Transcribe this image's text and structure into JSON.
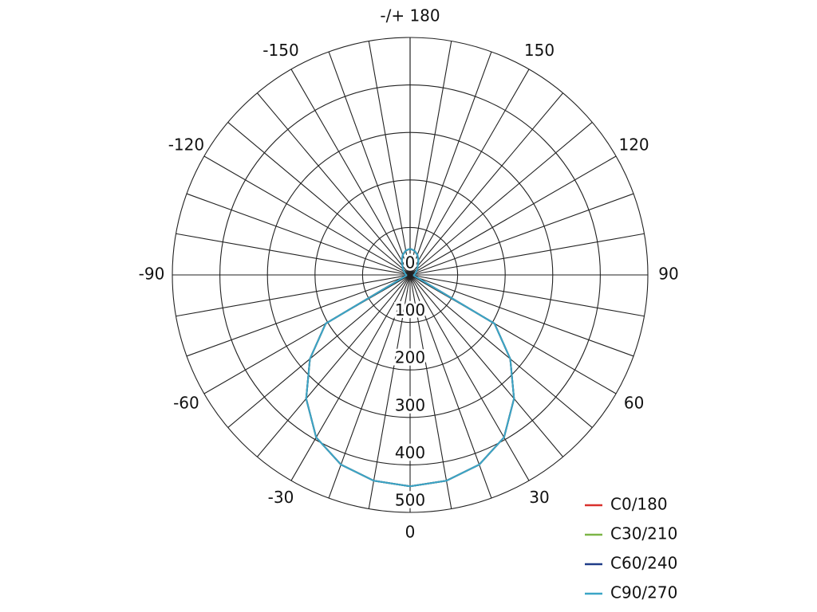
{
  "chart_data": {
    "type": "polar",
    "x": [
      -180,
      -170,
      -160,
      -150,
      -140,
      -130,
      -120,
      -110,
      -100,
      -90,
      -80,
      -70,
      -60,
      -50,
      -40,
      -30,
      -20,
      -10,
      0,
      10,
      20,
      30,
      40,
      50,
      60,
      70,
      80,
      90,
      100,
      110,
      120,
      130,
      140,
      150,
      160,
      170,
      180
    ],
    "xticks": [
      {
        "value": -180,
        "label": "-/+ 180"
      },
      -150,
      -120,
      -90,
      -60,
      -30,
      0,
      30,
      60,
      90,
      120,
      150
    ],
    "rlim": [
      0,
      500
    ],
    "rticks": [
      0,
      100,
      200,
      300,
      400,
      500
    ],
    "legend": "lower right",
    "series": [
      {
        "name": "C0/180",
        "color": "#d9302c",
        "values": [
          55,
          52,
          45,
          35,
          25,
          20,
          15,
          12,
          10,
          8,
          8,
          15,
          205,
          275,
          340,
          395,
          425,
          440,
          445,
          440,
          425,
          395,
          340,
          275,
          205,
          15,
          8,
          8,
          10,
          12,
          15,
          20,
          25,
          35,
          45,
          52,
          55
        ]
      },
      {
        "name": "C30/210",
        "color": "#7cb547",
        "values": [
          55,
          52,
          45,
          35,
          25,
          20,
          15,
          12,
          10,
          8,
          8,
          15,
          205,
          275,
          340,
          395,
          425,
          440,
          445,
          440,
          425,
          395,
          340,
          275,
          205,
          15,
          8,
          8,
          10,
          12,
          15,
          20,
          25,
          35,
          45,
          52,
          55
        ]
      },
      {
        "name": "C60/240",
        "color": "#1f3c88",
        "values": [
          55,
          52,
          45,
          35,
          25,
          20,
          15,
          12,
          10,
          8,
          8,
          15,
          205,
          275,
          340,
          395,
          425,
          440,
          445,
          440,
          425,
          395,
          340,
          275,
          205,
          15,
          8,
          8,
          10,
          12,
          15,
          20,
          25,
          35,
          45,
          52,
          55
        ]
      },
      {
        "name": "C90/270",
        "color": "#3ba5c6",
        "values": [
          55,
          52,
          45,
          35,
          25,
          20,
          15,
          12,
          10,
          8,
          8,
          15,
          205,
          275,
          340,
          395,
          425,
          440,
          445,
          440,
          425,
          395,
          340,
          275,
          205,
          15,
          8,
          8,
          10,
          12,
          15,
          20,
          25,
          35,
          45,
          52,
          55
        ]
      }
    ]
  }
}
